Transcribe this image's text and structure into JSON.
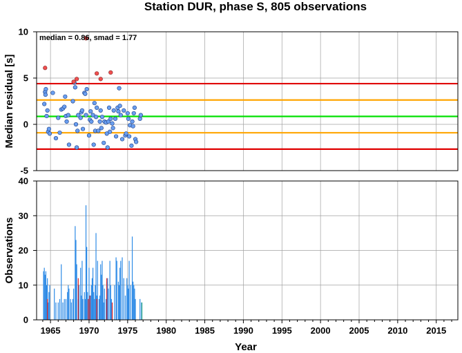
{
  "chart_data": [
    {
      "type": "scatter",
      "title": "Station DUR, phase S, 805 observations",
      "ylabel": "Median residual [s]",
      "xlim": [
        1963.2,
        2017.8
      ],
      "ylim": [
        -5,
        10
      ],
      "yticks": [
        -5,
        0,
        5,
        10
      ],
      "grid": true,
      "annotation": "median = 0.86, smad = 1.77",
      "hlines": [
        {
          "y": 0.86,
          "color": "#00e000"
        },
        {
          "y": 2.63,
          "color": "#ffa500"
        },
        {
          "y": -0.91,
          "color": "#ffa500"
        },
        {
          "y": 4.4,
          "color": "#e00000"
        },
        {
          "y": -2.68,
          "color": "#e00000"
        }
      ],
      "points_normal": [
        [
          1964.2,
          2.2
        ],
        [
          1964.3,
          3.5
        ],
        [
          1964.35,
          3.2
        ],
        [
          1964.4,
          3.8
        ],
        [
          1964.6,
          1.5
        ],
        [
          1964.7,
          -0.8
        ],
        [
          1964.8,
          -0.5
        ],
        [
          1964.9,
          -1.0
        ],
        [
          1964.5,
          0.9
        ],
        [
          1965.3,
          3.4
        ],
        [
          1965.7,
          -1.5
        ],
        [
          1966.0,
          0.7
        ],
        [
          1966.2,
          -0.9
        ],
        [
          1966.4,
          1.6
        ],
        [
          1966.6,
          1.7
        ],
        [
          1966.8,
          1.9
        ],
        [
          1966.9,
          3.0
        ],
        [
          1967.0,
          0.9
        ],
        [
          1967.1,
          0.3
        ],
        [
          1967.3,
          1.0
        ],
        [
          1967.4,
          -2.2
        ],
        [
          1967.9,
          2.5
        ],
        [
          1968.1,
          4.5
        ],
        [
          1968.2,
          4.0
        ],
        [
          1968.3,
          0.0
        ],
        [
          1968.4,
          -2.5
        ],
        [
          1968.5,
          -0.7
        ],
        [
          1968.6,
          1.0
        ],
        [
          1968.9,
          0.7
        ],
        [
          1969.0,
          1.3
        ],
        [
          1969.1,
          1.5
        ],
        [
          1969.2,
          -0.5
        ],
        [
          1969.4,
          3.4
        ],
        [
          1969.5,
          3.3
        ],
        [
          1969.6,
          1.0
        ],
        [
          1969.7,
          3.8
        ],
        [
          1970.0,
          -1.2
        ],
        [
          1970.1,
          0.5
        ],
        [
          1970.2,
          1.4
        ],
        [
          1970.3,
          0.3
        ],
        [
          1970.5,
          1.0
        ],
        [
          1970.6,
          -2.2
        ],
        [
          1970.7,
          2.3
        ],
        [
          1970.8,
          -0.7
        ],
        [
          1970.9,
          0.8
        ],
        [
          1971.0,
          1.8
        ],
        [
          1971.2,
          -0.7
        ],
        [
          1971.4,
          0.3
        ],
        [
          1971.5,
          1.5
        ],
        [
          1971.6,
          -0.4
        ],
        [
          1971.7,
          0.8
        ],
        [
          1971.9,
          -2.0
        ],
        [
          1972.0,
          0.3
        ],
        [
          1972.2,
          0.2
        ],
        [
          1972.3,
          -1.0
        ],
        [
          1972.4,
          -2.5
        ],
        [
          1972.5,
          0.3
        ],
        [
          1972.6,
          1.8
        ],
        [
          1972.7,
          -0.8
        ],
        [
          1972.8,
          0.6
        ],
        [
          1973.0,
          0.1
        ],
        [
          1973.1,
          -0.4
        ],
        [
          1973.2,
          1.5
        ],
        [
          1973.4,
          0.6
        ],
        [
          1973.5,
          -1.3
        ],
        [
          1973.7,
          1.8
        ],
        [
          1973.8,
          1.4
        ],
        [
          1973.9,
          3.9
        ],
        [
          1974.0,
          2.0
        ],
        [
          1974.1,
          1.0
        ],
        [
          1974.3,
          -1.6
        ],
        [
          1974.5,
          1.5
        ],
        [
          1974.7,
          -1.2
        ],
        [
          1974.8,
          -1.0
        ],
        [
          1975.0,
          1.2
        ],
        [
          1975.1,
          0.6
        ],
        [
          1975.2,
          -1.3
        ],
        [
          1975.3,
          -0.1
        ],
        [
          1975.5,
          -2.3
        ],
        [
          1975.6,
          0.3
        ],
        [
          1975.7,
          -0.2
        ],
        [
          1975.8,
          1.2
        ],
        [
          1975.9,
          1.8
        ],
        [
          1976.0,
          -1.6
        ],
        [
          1976.1,
          -1.9
        ],
        [
          1976.6,
          0.6
        ],
        [
          1976.7,
          1.0
        ]
      ],
      "points_outlier": [
        [
          1964.3,
          6.1
        ],
        [
          1968.0,
          4.6
        ],
        [
          1968.4,
          4.9
        ],
        [
          1969.6,
          9.3
        ],
        [
          1971.0,
          5.5
        ],
        [
          1971.5,
          4.9
        ],
        [
          1972.8,
          5.6
        ]
      ],
      "color_normal": "#6a9ff0",
      "color_outlier": "#f05050"
    },
    {
      "type": "bar",
      "ylabel": "Observations",
      "xlabel": "Year",
      "xlim": [
        1963.2,
        2017.8
      ],
      "ylim": [
        0,
        40
      ],
      "yticks": [
        0,
        10,
        20,
        30,
        40
      ],
      "xticks": [
        1965,
        1970,
        1975,
        1980,
        1985,
        1990,
        1995,
        2000,
        2005,
        2010,
        2015
      ],
      "grid": true,
      "bar_color": "#2e8be6",
      "bars": [
        [
          1964.1,
          14
        ],
        [
          1964.2,
          15
        ],
        [
          1964.3,
          13
        ],
        [
          1964.4,
          14
        ],
        [
          1964.5,
          10
        ],
        [
          1964.6,
          12
        ],
        [
          1964.7,
          5
        ],
        [
          1964.8,
          8
        ],
        [
          1964.9,
          10
        ],
        [
          1965.5,
          9
        ],
        [
          1965.7,
          5
        ],
        [
          1966.0,
          5
        ],
        [
          1966.2,
          6
        ],
        [
          1966.4,
          16
        ],
        [
          1966.6,
          5
        ],
        [
          1966.8,
          6
        ],
        [
          1967.0,
          6
        ],
        [
          1967.2,
          8
        ],
        [
          1967.3,
          10
        ],
        [
          1967.4,
          9
        ],
        [
          1967.6,
          6
        ],
        [
          1967.7,
          5
        ],
        [
          1967.9,
          6
        ],
        [
          1968.0,
          9
        ],
        [
          1968.2,
          27
        ],
        [
          1968.3,
          23
        ],
        [
          1968.4,
          16
        ],
        [
          1968.6,
          6
        ],
        [
          1968.7,
          10
        ],
        [
          1968.9,
          15
        ],
        [
          1969.0,
          7
        ],
        [
          1969.1,
          17
        ],
        [
          1969.2,
          6
        ],
        [
          1969.4,
          8
        ],
        [
          1969.5,
          6
        ],
        [
          1969.6,
          33
        ],
        [
          1969.7,
          21
        ],
        [
          1969.8,
          8
        ],
        [
          1970.0,
          15
        ],
        [
          1970.1,
          5
        ],
        [
          1970.2,
          7
        ],
        [
          1970.3,
          10
        ],
        [
          1970.4,
          12
        ],
        [
          1970.5,
          15
        ],
        [
          1970.6,
          8
        ],
        [
          1970.7,
          6
        ],
        [
          1970.8,
          10
        ],
        [
          1970.9,
          25
        ],
        [
          1971.0,
          7
        ],
        [
          1971.1,
          17
        ],
        [
          1971.3,
          6
        ],
        [
          1971.4,
          7
        ],
        [
          1971.5,
          16
        ],
        [
          1971.6,
          13
        ],
        [
          1971.7,
          17
        ],
        [
          1971.8,
          10
        ],
        [
          1971.9,
          5
        ],
        [
          1972.0,
          9
        ],
        [
          1972.2,
          6
        ],
        [
          1972.3,
          11
        ],
        [
          1972.4,
          12
        ],
        [
          1972.5,
          9
        ],
        [
          1972.7,
          17
        ],
        [
          1972.8,
          10
        ],
        [
          1972.9,
          6
        ],
        [
          1973.0,
          4
        ],
        [
          1973.3,
          10
        ],
        [
          1973.5,
          18
        ],
        [
          1973.6,
          17
        ],
        [
          1973.8,
          11
        ],
        [
          1973.9,
          10
        ],
        [
          1974.0,
          15
        ],
        [
          1974.1,
          17
        ],
        [
          1974.3,
          18
        ],
        [
          1974.5,
          12
        ],
        [
          1974.7,
          7
        ],
        [
          1974.9,
          12
        ],
        [
          1975.0,
          10
        ],
        [
          1975.1,
          9
        ],
        [
          1975.2,
          17
        ],
        [
          1975.4,
          10
        ],
        [
          1975.6,
          24
        ],
        [
          1975.7,
          11
        ],
        [
          1975.8,
          10
        ],
        [
          1975.9,
          9
        ],
        [
          1976.0,
          6
        ],
        [
          1976.6,
          6
        ],
        [
          1976.8,
          5
        ]
      ],
      "outlier_bars_color": "#e02020",
      "outlier_bars": [
        [
          1964.6,
          6
        ],
        [
          1968.6,
          12
        ],
        [
          1969.9,
          6
        ],
        [
          1970.1,
          7
        ],
        [
          1971.0,
          6
        ],
        [
          1972.3,
          12
        ],
        [
          1973.0,
          5
        ]
      ],
      "tail_bars_color": "#20a080",
      "tail_bars": [
        [
          1976.85,
          5
        ]
      ]
    }
  ]
}
